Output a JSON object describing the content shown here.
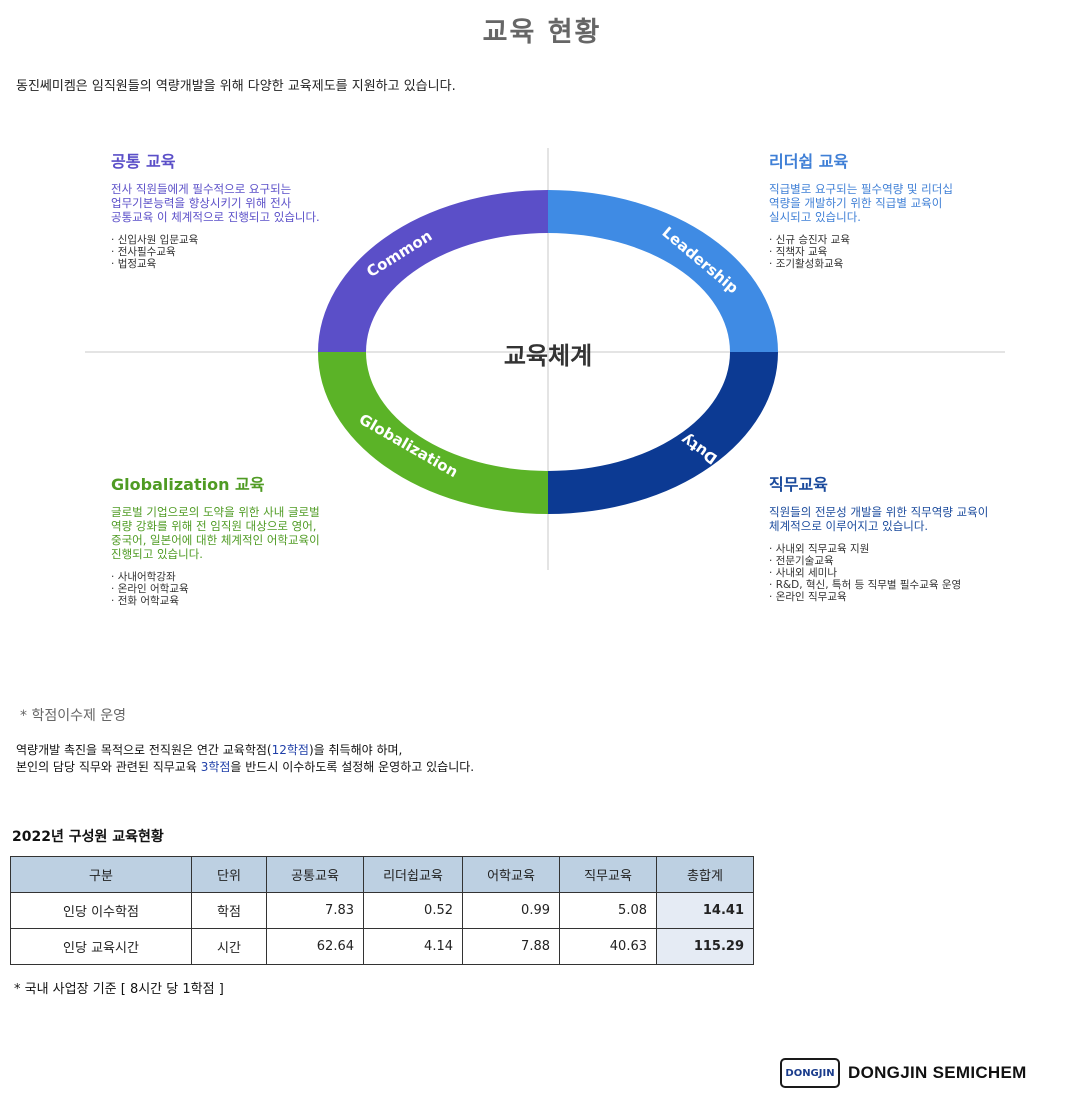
{
  "title": "교육 현황",
  "intro": "동진쎄미켐은 임직원들의 역량개발을 위해 다양한 교육제도를 지원하고 있습니다.",
  "diagram": {
    "center": "교육체계",
    "ring_labels": {
      "common": "Common",
      "leadership": "Leadership",
      "globalization": "Globalization",
      "duty": "Duty"
    },
    "colors": {
      "common": "#5b4fc8",
      "leadership": "#3f8be4",
      "globalization": "#5bb327",
      "duty": "#0c3a93"
    },
    "common": {
      "heading": "공통 교육",
      "desc": [
        "전사 직원들에게 필수적으로 요구되는",
        "업무기본능력을 향상시키기 위해 전사",
        "공통교육 이 체계적으로 진행되고 있습니다."
      ],
      "items": [
        "신입사원 입문교육",
        "전사필수교육",
        "법정교육"
      ]
    },
    "leadership": {
      "heading": "리더쉽 교육",
      "desc": [
        "직급별로 요구되는 필수역량 및 리더십",
        "역량을 개발하기 위한 직급별 교육이",
        "실시되고 있습니다."
      ],
      "items": [
        "신규 승진자 교육",
        "직책자 교육",
        "조기활성화교육"
      ]
    },
    "globalization": {
      "heading": "Globalization 교육",
      "desc": [
        "글로벌 기업으로의 도약을 위한 사내 글로벌",
        "역량 강화를 위해 전 임직원 대상으로 영어,",
        "중국어, 일본어에 대한 체계적인 어학교육이",
        "진행되고 있습니다."
      ],
      "items": [
        "사내어학강좌",
        "온라인 어학교육",
        "전화 어학교육"
      ]
    },
    "duty": {
      "heading": "직무교육",
      "desc": [
        "직원들의 전문성 개발을 위한 직무역량 교육이",
        "체계적으로 이루어지고 있습니다."
      ],
      "items": [
        "사내외 직무교육 지원",
        "전문기술교육",
        "사내외 세미나",
        "R&D, 혁신, 특허 등 직무별 필수교육 운영",
        "온라인 직무교육"
      ]
    }
  },
  "credit": {
    "title": "* 학점이수제 운영",
    "line1_a": "역량개발 촉진을 목적으로 전직원은 연간 교육학점(",
    "line1_hl": "12학점",
    "line1_b": ")을 취득해야 하며,",
    "line2_a": "본인의 담당 직무와 관련된 직무교육 ",
    "line2_hl": "3학점",
    "line2_b": "을 반드시 이수하도록 설정해 운영하고 있습니다."
  },
  "table": {
    "title": "2022년 구성원 교육현황",
    "headers": [
      "구분",
      "단위",
      "공통교육",
      "리더쉽교육",
      "어학교육",
      "직무교육",
      "총합계"
    ],
    "rows": [
      [
        "인당 이수학점",
        "학점",
        "7.83",
        "0.52",
        "0.99",
        "5.08",
        "14.41"
      ],
      [
        "인당 교육시간",
        "시간",
        "62.64",
        "4.14",
        "7.88",
        "40.63",
        "115.29"
      ]
    ],
    "footnote": "* 국내 사업장 기준 [ 8시간 당 1학점 ]"
  },
  "logo": {
    "mark": "DONGJIN",
    "text": "DONGJIN SEMICHEM"
  }
}
